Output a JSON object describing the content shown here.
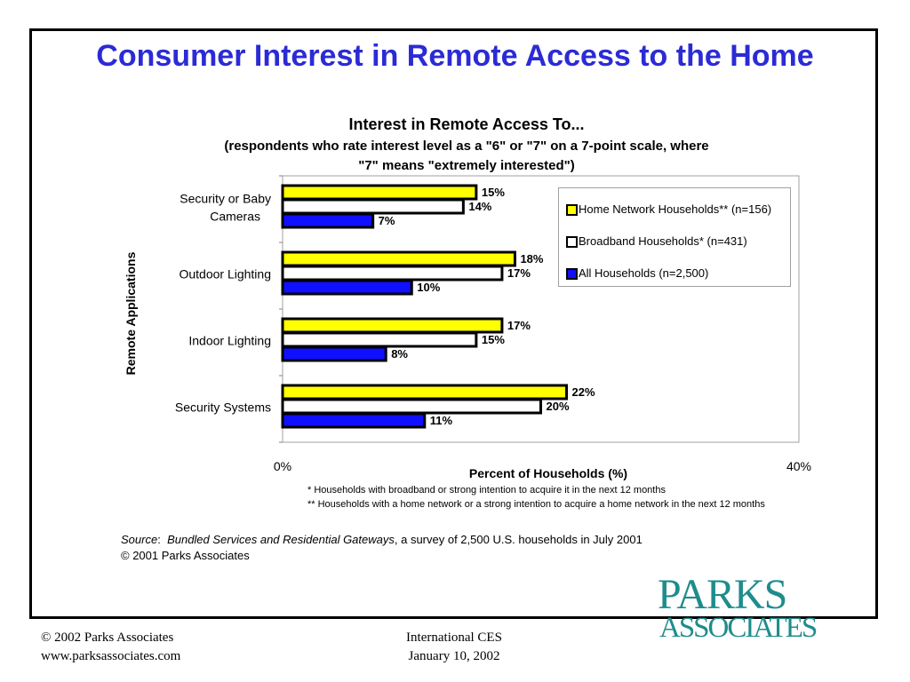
{
  "slide": {
    "title": "Consumer Interest in Remote Access to the Home"
  },
  "chart_data": {
    "type": "bar",
    "orientation": "horizontal",
    "title": "Interest in Remote Access To...",
    "subtitle_line1": "(respondents who rate interest level as a \"6\" or \"7\" on a 7-point scale, where",
    "subtitle_line2": "\"7\" means \"extremely interested\")",
    "ylabel": "Remote Applications",
    "xlabel": "Percent of Households (%)",
    "xlim": [
      0,
      40
    ],
    "x_ticks": [
      "0%",
      "40%"
    ],
    "categories": [
      {
        "line1": "Security or Baby",
        "line2": "Cameras"
      },
      {
        "line1": "Outdoor Lighting",
        "line2": ""
      },
      {
        "line1": "Indoor Lighting",
        "line2": ""
      },
      {
        "line1": "Security Systems",
        "line2": ""
      }
    ],
    "series": [
      {
        "name": "Home Network Households** (n=156)",
        "color": "#ffff00",
        "values": [
          15,
          18,
          17,
          22
        ],
        "labels": [
          "15%",
          "18%",
          "17%",
          "22%"
        ]
      },
      {
        "name": "Broadband Households* (n=431)",
        "color": "#ffffff",
        "values": [
          14,
          17,
          15,
          20
        ],
        "labels": [
          "14%",
          "17%",
          "15%",
          "20%"
        ]
      },
      {
        "name": "All Households (n=2,500)",
        "color": "#1010ff",
        "values": [
          7,
          10,
          8,
          11
        ],
        "labels": [
          "7%",
          "10%",
          "8%",
          "11%"
        ]
      }
    ],
    "legend_position": "top-right",
    "grid": false
  },
  "footnotes": {
    "note1": "* Households with broadband or strong intention to acquire it in the next 12 months",
    "note2": "** Households with a home network or a strong intention to acquire a home network in the next 12 months"
  },
  "source": {
    "label": "Source",
    "colon": ":",
    "publication": "Bundled Services and Residential Gateways",
    "rest": ", a survey of 2,500 U.S. households in July 2001",
    "copyright": "© 2001 Parks Associates"
  },
  "footer": {
    "left_line1": "© 2002 Parks Associates",
    "left_line2": "www.parksassociates.com",
    "center_line1": "International CES",
    "center_line2": "January 10, 2002"
  },
  "logo": {
    "line1": "PARKS",
    "line2": "ASSOCIATES",
    "color": "#1f8c8c"
  }
}
